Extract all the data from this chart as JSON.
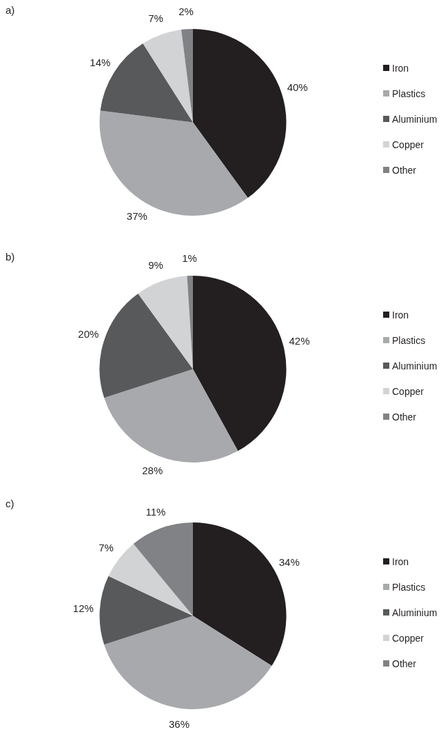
{
  "chart_data": [
    {
      "type": "pie",
      "title": "a)",
      "categories": [
        "Iron",
        "Plastics",
        "Aluminium",
        "Copper",
        "Other"
      ],
      "values": [
        40,
        37,
        14,
        7,
        2
      ],
      "value_labels": [
        "40%",
        "37%",
        "14%",
        "7%",
        "2%"
      ],
      "colors": [
        "#231f20",
        "#a7a9ac",
        "#58595b",
        "#d1d3d4",
        "#808285"
      ],
      "legend": "right"
    },
    {
      "type": "pie",
      "title": "b)",
      "categories": [
        "Iron",
        "Plastics",
        "Aluminium",
        "Copper",
        "Other"
      ],
      "values": [
        42,
        28,
        20,
        9,
        1
      ],
      "value_labels": [
        "42%",
        "28%",
        "20%",
        "9%",
        "1%"
      ],
      "colors": [
        "#231f20",
        "#a7a9ac",
        "#58595b",
        "#d1d3d4",
        "#808285"
      ],
      "legend": "right"
    },
    {
      "type": "pie",
      "title": "c)",
      "categories": [
        "Iron",
        "Plastics",
        "Aluminium",
        "Copper",
        "Other"
      ],
      "values": [
        34,
        36,
        12,
        7,
        11
      ],
      "value_labels": [
        "34%",
        "36%",
        "12%",
        "7%",
        "11%"
      ],
      "colors": [
        "#231f20",
        "#a7a9ac",
        "#58595b",
        "#d1d3d4",
        "#808285"
      ],
      "legend": "right"
    }
  ]
}
